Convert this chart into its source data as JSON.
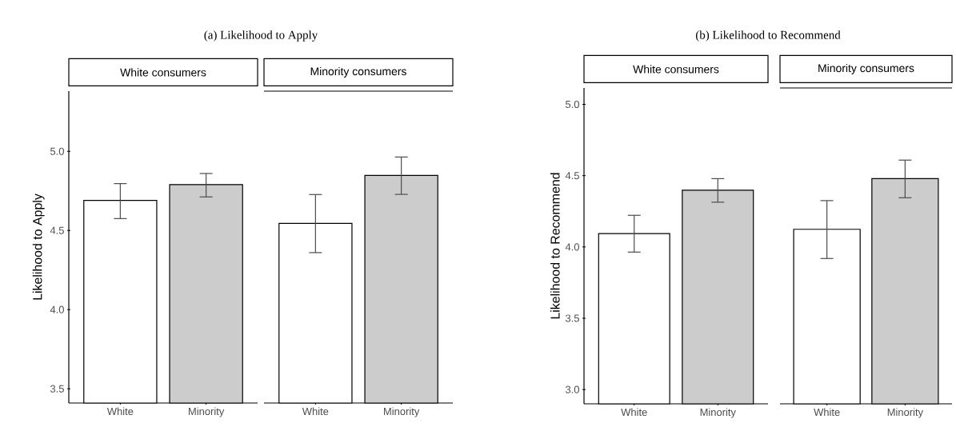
{
  "chart_data": [
    {
      "type": "bar",
      "title": "(a) Likelihood to Apply",
      "subtitle": "White consumers",
      "ylabel": "Likelihood to Apply",
      "categories": [
        "White",
        "Minority"
      ],
      "values": [
        4.69,
        4.79
      ],
      "colors": [
        "#ffffff",
        "#cccccc"
      ],
      "errors": [
        [
          4.575,
          4.796
        ],
        [
          4.712,
          4.86
        ]
      ],
      "ylim": [
        3.41,
        5.38
      ],
      "yticks": [
        {
          "value": 3.5,
          "label": "3.5"
        },
        {
          "value": 4,
          "label": "4.0"
        },
        {
          "value": 4.5,
          "label": "4.5"
        },
        {
          "value": 5,
          "label": "5.0"
        }
      ]
    },
    {
      "type": "bar",
      "subtitle": "Minority consumers",
      "categories": [
        "White",
        "Minority"
      ],
      "values": [
        4.545,
        4.848
      ],
      "colors": [
        "#ffffff",
        "#cccccc"
      ],
      "errors": [
        [
          4.36,
          4.727
        ],
        [
          4.728,
          4.964
        ]
      ],
      "ylim": [
        3.41,
        5.38
      ],
      "tick_labels": "x"
    },
    {
      "type": "bar",
      "title": "(b) Likelihood to Recommend",
      "subtitle": "White consumers",
      "ylabel": "Likelihood to Recommend",
      "categories": [
        "White",
        "Minority"
      ],
      "values": [
        4.094,
        4.398
      ],
      "colors": [
        "#ffffff",
        "#cccccc"
      ],
      "errors": [
        [
          3.964,
          4.222
        ],
        [
          4.314,
          4.479
        ]
      ],
      "ylim": [
        2.9,
        5.115
      ],
      "yticks": [
        {
          "value": 3,
          "label": "3.0"
        },
        {
          "value": 3.5,
          "label": "3.5"
        },
        {
          "value": 4,
          "label": "4.0"
        },
        {
          "value": 4.5,
          "label": "4.5"
        },
        {
          "value": 5,
          "label": "5.0"
        }
      ]
    },
    {
      "type": "bar",
      "subtitle": "Minority consumers",
      "categories": [
        "White",
        "Minority"
      ],
      "values": [
        4.124,
        4.479
      ],
      "colors": [
        "#ffffff",
        "#cccccc"
      ],
      "errors": [
        [
          3.919,
          4.325
        ],
        [
          4.345,
          4.609
        ]
      ],
      "ylim": [
        2.9,
        5.115
      ],
      "tick_labels": "x"
    }
  ]
}
